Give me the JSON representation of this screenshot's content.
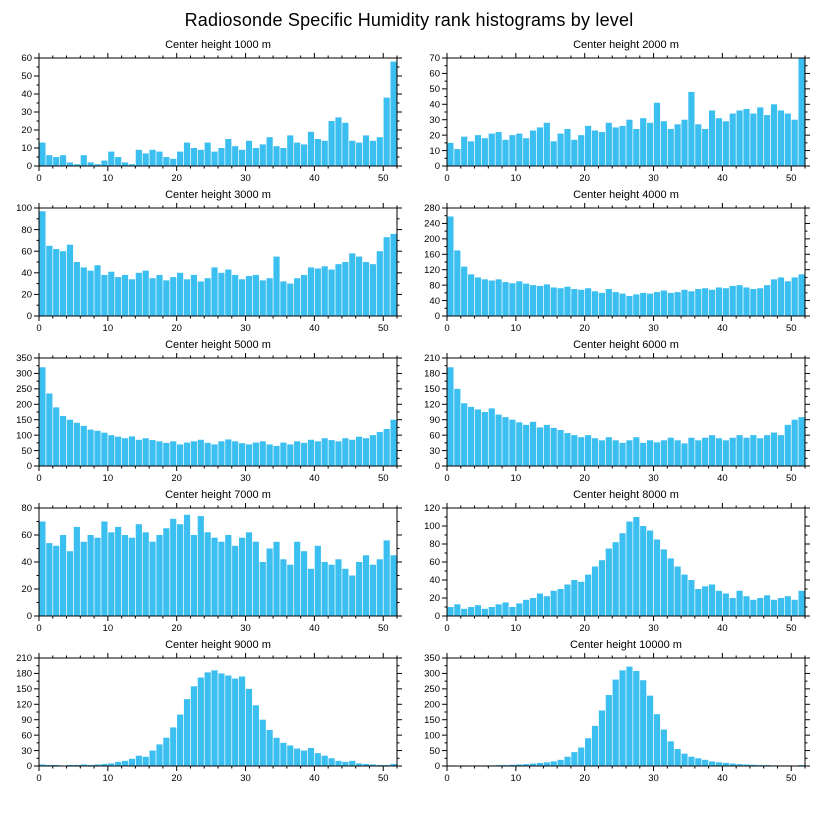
{
  "title": "Radiosonde Specific Humidity rank histograms by level",
  "style": {
    "bar_color": "#3BBFF0",
    "axis_color": "#000000",
    "background": "#ffffff"
  },
  "chart_data": [
    {
      "type": "bar",
      "title": "Center height 1000 m",
      "x_range": [
        0,
        52
      ],
      "xticks": [
        0,
        10,
        20,
        30,
        40,
        50
      ],
      "xminor_step": 2,
      "ylim": [
        0,
        60
      ],
      "yticks": [
        0,
        10,
        20,
        30,
        40,
        50,
        60
      ],
      "grid": false,
      "legend": "none",
      "values": [
        13,
        6,
        5,
        6,
        2,
        1,
        6,
        2,
        1,
        3,
        8,
        5,
        2,
        1,
        9,
        7,
        9,
        8,
        5,
        4,
        8,
        13,
        10,
        9,
        13,
        8,
        10,
        15,
        11,
        9,
        14,
        10,
        12,
        16,
        11,
        10,
        17,
        13,
        12,
        19,
        15,
        14,
        25,
        27,
        24,
        14,
        13,
        17,
        14,
        16,
        38,
        58
      ]
    },
    {
      "type": "bar",
      "title": "Center height 2000 m",
      "x_range": [
        0,
        52
      ],
      "xticks": [
        0,
        10,
        20,
        30,
        40,
        50
      ],
      "xminor_step": 2,
      "ylim": [
        0,
        70
      ],
      "yticks": [
        0,
        10,
        20,
        30,
        40,
        50,
        60,
        70
      ],
      "grid": false,
      "legend": "none",
      "values": [
        15,
        11,
        19,
        16,
        20,
        18,
        21,
        22,
        17,
        20,
        21,
        18,
        23,
        25,
        28,
        16,
        21,
        24,
        17,
        20,
        26,
        23,
        22,
        28,
        25,
        26,
        30,
        24,
        31,
        28,
        41,
        29,
        24,
        27,
        30,
        48,
        27,
        24,
        36,
        31,
        29,
        34,
        36,
        37,
        34,
        38,
        33,
        40,
        36,
        34,
        30,
        70
      ]
    },
    {
      "type": "bar",
      "title": "Center height 3000 m",
      "x_range": [
        0,
        52
      ],
      "xticks": [
        0,
        10,
        20,
        30,
        40,
        50
      ],
      "xminor_step": 2,
      "ylim": [
        0,
        100
      ],
      "yticks": [
        0,
        20,
        40,
        60,
        80,
        100
      ],
      "grid": false,
      "legend": "none",
      "values": [
        97,
        65,
        62,
        60,
        66,
        50,
        45,
        42,
        47,
        38,
        41,
        36,
        38,
        34,
        40,
        42,
        35,
        38,
        33,
        36,
        40,
        34,
        38,
        32,
        35,
        45,
        40,
        43,
        38,
        34,
        37,
        38,
        33,
        35,
        55,
        32,
        30,
        35,
        38,
        45,
        44,
        46,
        43,
        48,
        50,
        58,
        55,
        50,
        48,
        60,
        73,
        76
      ]
    },
    {
      "type": "bar",
      "title": "Center height 4000 m",
      "x_range": [
        0,
        52
      ],
      "xticks": [
        0,
        10,
        20,
        30,
        40,
        50
      ],
      "xminor_step": 2,
      "ylim": [
        0,
        280
      ],
      "yticks": [
        0,
        40,
        80,
        120,
        160,
        200,
        240,
        280
      ],
      "grid": false,
      "legend": "none",
      "values": [
        258,
        170,
        128,
        108,
        100,
        95,
        92,
        95,
        88,
        85,
        90,
        84,
        80,
        78,
        82,
        74,
        72,
        76,
        70,
        68,
        72,
        64,
        60,
        70,
        62,
        58,
        52,
        56,
        60,
        58,
        62,
        66,
        60,
        62,
        68,
        64,
        70,
        72,
        68,
        74,
        72,
        78,
        80,
        74,
        70,
        72,
        80,
        95,
        100,
        90,
        100,
        108
      ]
    },
    {
      "type": "bar",
      "title": "Center height 5000 m",
      "x_range": [
        0,
        52
      ],
      "xticks": [
        0,
        10,
        20,
        30,
        40,
        50
      ],
      "xminor_step": 2,
      "ylim": [
        0,
        350
      ],
      "yticks": [
        0,
        50,
        100,
        150,
        200,
        250,
        300,
        350
      ],
      "grid": false,
      "legend": "none",
      "values": [
        320,
        235,
        190,
        162,
        150,
        140,
        130,
        118,
        114,
        108,
        100,
        95,
        90,
        96,
        85,
        90,
        84,
        80,
        75,
        80,
        70,
        76,
        80,
        85,
        75,
        70,
        80,
        86,
        80,
        74,
        70,
        76,
        80,
        70,
        65,
        76,
        70,
        80,
        75,
        85,
        80,
        90,
        84,
        80,
        90,
        85,
        95,
        90,
        100,
        110,
        120,
        150
      ]
    },
    {
      "type": "bar",
      "title": "Center height 6000 m",
      "x_range": [
        0,
        52
      ],
      "xticks": [
        0,
        10,
        20,
        30,
        40,
        50
      ],
      "xminor_step": 2,
      "ylim": [
        0,
        210
      ],
      "yticks": [
        0,
        30,
        60,
        90,
        120,
        150,
        180,
        210
      ],
      "grid": false,
      "legend": "none",
      "values": [
        192,
        150,
        122,
        115,
        110,
        105,
        112,
        100,
        95,
        90,
        85,
        80,
        86,
        75,
        80,
        74,
        70,
        64,
        60,
        56,
        60,
        54,
        50,
        56,
        50,
        45,
        50,
        56,
        45,
        50,
        46,
        50,
        55,
        50,
        44,
        55,
        50,
        55,
        60,
        54,
        50,
        55,
        60,
        55,
        60,
        54,
        60,
        65,
        60,
        80,
        90,
        95
      ]
    },
    {
      "type": "bar",
      "title": "Center height 7000 m",
      "x_range": [
        0,
        52
      ],
      "xticks": [
        0,
        10,
        20,
        30,
        40,
        50
      ],
      "xminor_step": 2,
      "ylim": [
        0,
        80
      ],
      "yticks": [
        0,
        20,
        40,
        60,
        80
      ],
      "grid": false,
      "legend": "none",
      "values": [
        70,
        54,
        52,
        60,
        48,
        66,
        55,
        60,
        58,
        70,
        62,
        66,
        60,
        58,
        68,
        62,
        55,
        60,
        65,
        72,
        68,
        75,
        60,
        74,
        62,
        58,
        55,
        60,
        52,
        58,
        62,
        55,
        40,
        50,
        55,
        42,
        38,
        55,
        48,
        35,
        52,
        40,
        38,
        42,
        35,
        30,
        40,
        45,
        38,
        42,
        56,
        45
      ]
    },
    {
      "type": "bar",
      "title": "Center height 8000 m",
      "x_range": [
        0,
        52
      ],
      "xticks": [
        0,
        10,
        20,
        30,
        40,
        50
      ],
      "xminor_step": 2,
      "ylim": [
        0,
        120
      ],
      "yticks": [
        0,
        20,
        40,
        60,
        80,
        100,
        120
      ],
      "grid": false,
      "legend": "none",
      "values": [
        10,
        13,
        8,
        10,
        12,
        8,
        10,
        13,
        15,
        10,
        14,
        18,
        20,
        25,
        22,
        28,
        30,
        35,
        40,
        38,
        46,
        55,
        62,
        75,
        82,
        92,
        105,
        110,
        100,
        95,
        85,
        74,
        64,
        55,
        46,
        40,
        30,
        33,
        35,
        28,
        25,
        20,
        28,
        22,
        18,
        20,
        23,
        18,
        20,
        22,
        18,
        28
      ]
    },
    {
      "type": "bar",
      "title": "Center height 9000 m",
      "x_range": [
        0,
        52
      ],
      "xticks": [
        0,
        10,
        20,
        30,
        40,
        50
      ],
      "xminor_step": 2,
      "ylim": [
        0,
        210
      ],
      "yticks": [
        0,
        30,
        60,
        90,
        120,
        150,
        180,
        210
      ],
      "grid": false,
      "legend": "none",
      "values": [
        3,
        2,
        2,
        1,
        2,
        2,
        3,
        2,
        3,
        4,
        5,
        8,
        10,
        14,
        20,
        18,
        30,
        42,
        55,
        75,
        100,
        130,
        155,
        172,
        182,
        186,
        180,
        176,
        170,
        174,
        150,
        118,
        90,
        70,
        55,
        45,
        40,
        34,
        30,
        35,
        25,
        20,
        15,
        10,
        8,
        10,
        5,
        4,
        3,
        2,
        2,
        4
      ]
    },
    {
      "type": "bar",
      "title": "Center height 10000 m",
      "x_range": [
        0,
        52
      ],
      "xticks": [
        0,
        10,
        20,
        30,
        40,
        50
      ],
      "xminor_step": 2,
      "ylim": [
        0,
        350
      ],
      "yticks": [
        0,
        50,
        100,
        150,
        200,
        250,
        300,
        350
      ],
      "grid": false,
      "legend": "none",
      "values": [
        2,
        1,
        2,
        1,
        2,
        2,
        2,
        3,
        3,
        4,
        5,
        6,
        8,
        10,
        12,
        15,
        20,
        30,
        45,
        60,
        90,
        130,
        180,
        230,
        280,
        310,
        322,
        308,
        278,
        228,
        168,
        118,
        80,
        55,
        40,
        30,
        25,
        20,
        15,
        12,
        10,
        8,
        6,
        5,
        4,
        3,
        3,
        2,
        2,
        2,
        1,
        3
      ]
    }
  ]
}
